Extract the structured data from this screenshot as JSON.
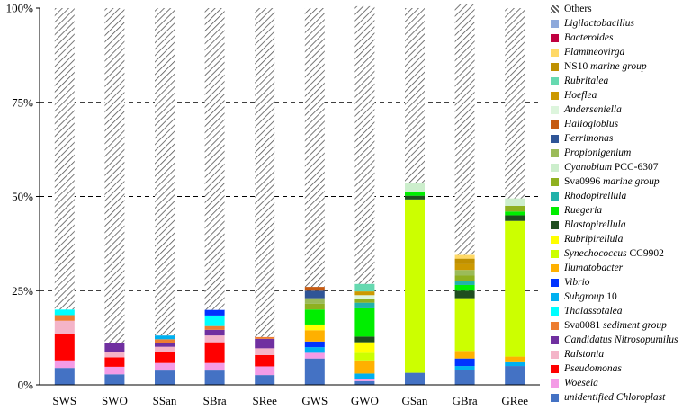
{
  "chart_data": {
    "type": "stacked-bar",
    "categories": [
      "SWS",
      "SWO",
      "SSan",
      "SBra",
      "SRee",
      "GWS",
      "GWO",
      "GSan",
      "GBra",
      "GRee"
    ],
    "ylim": [
      0,
      100
    ],
    "yticks": [
      "0%",
      "25%",
      "50%",
      "75%",
      "100%"
    ],
    "ytick_values": [
      0,
      25,
      50,
      75,
      100
    ],
    "grid": "dashed horizontal at 25%, 50%, 75%",
    "legend_position": "right",
    "series": [
      {
        "name": "unidentified Chloroplast",
        "italic": "unidentified Chloroplast",
        "color": "#4472C4",
        "values": [
          4.5,
          2.8,
          3.8,
          3.8,
          2.6,
          7.0,
          1.0,
          3.2,
          4.0,
          5.0
        ]
      },
      {
        "name": "Woeseia",
        "italic": "Woeseia",
        "color": "#F49BE6",
        "values": [
          2.0,
          2.0,
          2.0,
          2.0,
          2.3,
          1.5,
          0.5,
          0,
          0,
          0
        ]
      },
      {
        "name": "Pseudomonas",
        "italic": "Pseudomonas",
        "color": "#FF0000",
        "values": [
          7.0,
          2.5,
          2.8,
          5.5,
          3.0,
          0,
          0,
          0,
          0,
          0
        ]
      },
      {
        "name": "Ralstonia",
        "italic": "Ralstonia",
        "color": "#F4B4C8",
        "values": [
          3.5,
          1.5,
          1.5,
          1.8,
          1.8,
          0,
          0,
          0,
          0,
          0
        ]
      },
      {
        "name": "Candidatus Nitrosopumilus",
        "italic": "Candidatus Nitrosopumilus",
        "color": "#7030A0",
        "values": [
          0,
          2.4,
          1.0,
          1.5,
          2.5,
          0,
          0,
          0,
          0,
          0
        ]
      },
      {
        "name": "Sva0081 sediment group",
        "italic": "sediment group",
        "color": "#ED7D31",
        "values": [
          1.5,
          0,
          1.0,
          1.0,
          0.5,
          0,
          0,
          0,
          0,
          0
        ]
      },
      {
        "name": "Thalassotalea",
        "italic": "Thalassotalea",
        "color": "#00FFFF",
        "values": [
          1.5,
          0,
          0,
          2.8,
          0,
          0,
          0,
          0,
          0,
          0
        ]
      },
      {
        "name": "Subgroup 10",
        "italic": "Subgroup",
        "color": "#00B0F0",
        "values": [
          0,
          0,
          1.0,
          0,
          0,
          1.5,
          1.5,
          0,
          1.0,
          1.0
        ]
      },
      {
        "name": "Vibrio",
        "italic": "Vibrio",
        "color": "#0033FF",
        "values": [
          0,
          0,
          0,
          1.5,
          0,
          1.5,
          0,
          0,
          2.0,
          0
        ]
      },
      {
        "name": "Ilumatobacter",
        "italic": "Ilumatobacter",
        "color": "#FFB000",
        "values": [
          0,
          0,
          0,
          0,
          0,
          3.0,
          3.5,
          0,
          2.0,
          1.5
        ]
      },
      {
        "name": "Synechococcus CC9902",
        "italic": "Synechococcus",
        "color": "#CCFF00",
        "values": [
          0,
          0,
          0,
          0,
          0,
          0,
          2.0,
          46.0,
          14.0,
          36.0
        ]
      },
      {
        "name": "Rubripirellula",
        "italic": "Rubripirellula",
        "color": "#FFFF00",
        "values": [
          0,
          0,
          0,
          0,
          0,
          1.5,
          2.8,
          0,
          0,
          0
        ]
      },
      {
        "name": "Blastopirellula",
        "italic": "Blastopirellula",
        "color": "#1F4E1F",
        "values": [
          0,
          0,
          0,
          0,
          0,
          0,
          1.5,
          1.0,
          2.0,
          1.5
        ]
      },
      {
        "name": "Ruegeria",
        "italic": "Ruegeria",
        "color": "#00EE00",
        "values": [
          0,
          0,
          0,
          0,
          0,
          4.0,
          7.5,
          1.0,
          1.5,
          1.0
        ]
      },
      {
        "name": "Rhodopirellula",
        "italic": "Rhodopirellula",
        "color": "#20B2AA",
        "values": [
          0,
          0,
          0,
          0,
          0,
          0,
          1.5,
          0,
          1.0,
          0
        ]
      },
      {
        "name": "Sva0996 marine group",
        "italic": "marine group",
        "color": "#8FB020",
        "values": [
          0,
          0,
          0,
          0,
          0,
          1.5,
          1.0,
          0,
          1.5,
          1.5
        ]
      },
      {
        "name": "Cyanobium PCC-6307",
        "italic": "Cyanobium",
        "color": "#CCEECC",
        "values": [
          0,
          0,
          0,
          0,
          0,
          0,
          0,
          2.5,
          0,
          2.0
        ]
      },
      {
        "name": "Propionigenium",
        "italic": "Propionigenium",
        "color": "#9BBB59",
        "values": [
          0,
          0,
          0,
          0,
          0,
          1.5,
          0,
          0,
          1.5,
          0
        ]
      },
      {
        "name": "Ferrimonas",
        "italic": "Ferrimonas",
        "color": "#2F5597",
        "values": [
          0,
          0,
          0,
          0,
          0,
          2.0,
          0,
          0,
          0,
          0
        ]
      },
      {
        "name": "Haliogloblus",
        "italic": "Haliogloblus",
        "color": "#C55A11",
        "values": [
          0,
          0,
          0,
          0,
          0,
          1.0,
          0,
          0,
          0,
          0
        ]
      },
      {
        "name": "Anderseniella",
        "italic": "Anderseniella",
        "color": "#DDF5DD",
        "values": [
          0,
          0,
          0,
          0,
          0,
          0,
          1.0,
          0,
          0,
          0
        ]
      },
      {
        "name": "Hoeflea",
        "italic": "Hoeflea",
        "color": "#CC9900",
        "values": [
          0,
          0,
          0,
          0,
          0,
          0,
          1.0,
          0,
          1.5,
          0
        ]
      },
      {
        "name": "Rubritalea",
        "italic": "Rubritalea",
        "color": "#66D9B0",
        "values": [
          0,
          0,
          0,
          0,
          0,
          0,
          2.0,
          0,
          0,
          0
        ]
      },
      {
        "name": "NS10 marine group",
        "italic": "marine group",
        "color": "#BF9000",
        "values": [
          0,
          0,
          0,
          0,
          0,
          0,
          0,
          0,
          1.5,
          0
        ]
      },
      {
        "name": "Flammeovirga",
        "italic": "Flammeovirga",
        "color": "#FFD966",
        "values": [
          0,
          0,
          0,
          0,
          0,
          0,
          0,
          0,
          1.0,
          0
        ]
      },
      {
        "name": "Bacteroides",
        "italic": "Bacteroides",
        "color": "#C00040",
        "values": [
          0,
          0,
          0,
          0,
          0,
          0,
          0,
          0,
          0,
          0
        ]
      },
      {
        "name": "Ligilactobacillus",
        "italic": "Ligilactobacillus",
        "color": "#8EA9DB",
        "values": [
          0,
          0,
          0,
          0,
          0,
          0,
          0,
          0,
          0,
          0
        ]
      },
      {
        "name": "Others",
        "italic": "",
        "color": "hatch",
        "values": [
          80.0,
          88.8,
          86.9,
          80.1,
          87.3,
          74.0,
          73.7,
          46.3,
          66.5,
          50.5
        ]
      }
    ]
  }
}
